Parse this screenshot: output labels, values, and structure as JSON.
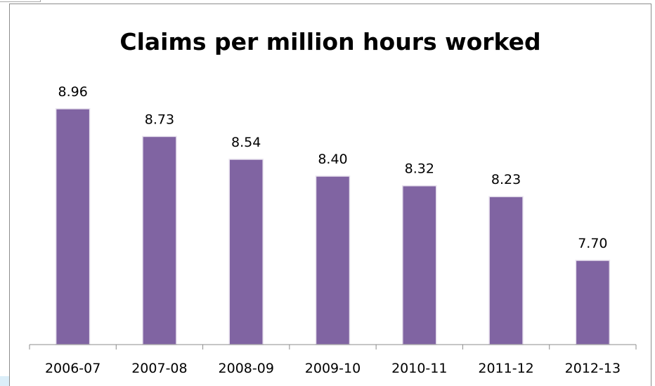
{
  "chart_data": {
    "type": "bar",
    "title": "Claims per million hours worked",
    "xlabel": "",
    "ylabel": "",
    "categories": [
      "2006-07",
      "2007-08",
      "2008-09",
      "2009-10",
      "2010-11",
      "2011-12",
      "2012-13"
    ],
    "values": [
      8.96,
      8.73,
      8.54,
      8.4,
      8.32,
      8.23,
      7.7
    ],
    "data_labels": [
      "8.96",
      "8.73",
      "8.54",
      "8.40",
      "8.32",
      "8.23",
      "7.70"
    ],
    "ylim": [
      7.0,
      9.2
    ],
    "grid": false,
    "legend": "none",
    "bar_color": "#8064a2"
  }
}
